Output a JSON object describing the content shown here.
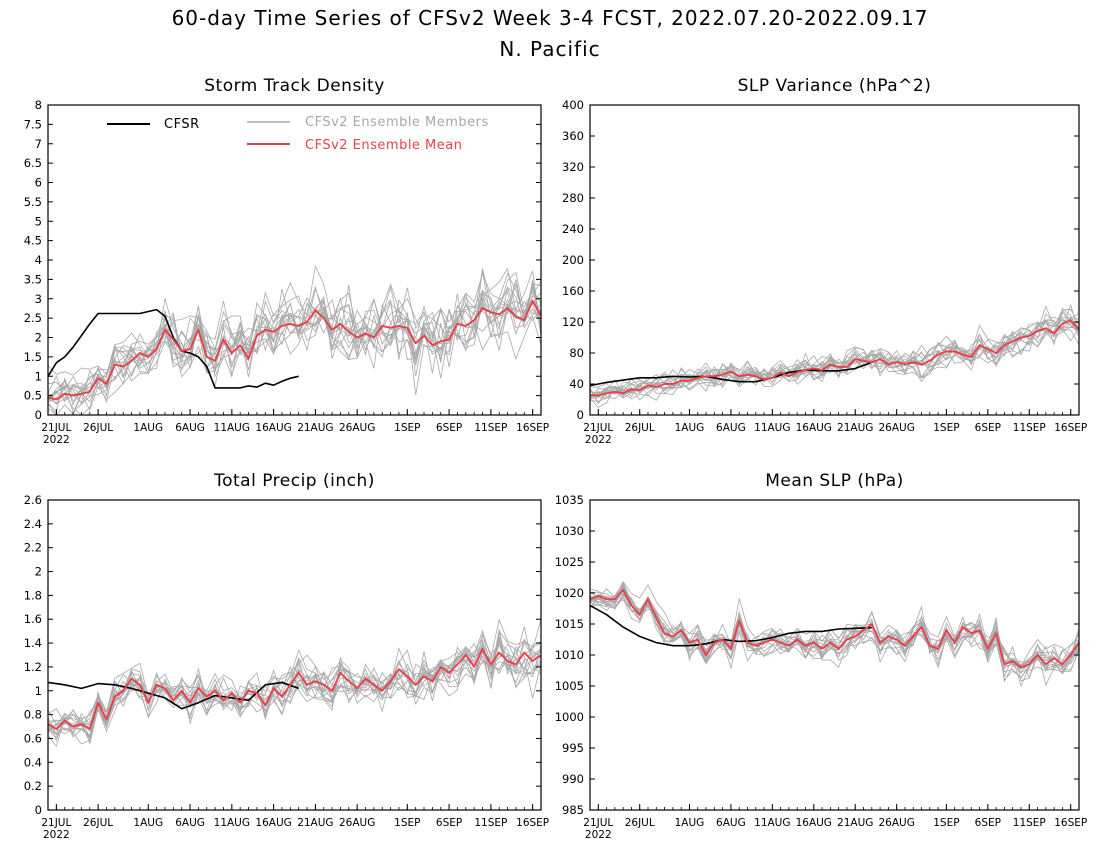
{
  "figure": {
    "title": "60-day Time Series of CFSv2 Week 3-4 FCST, 2022.07.20-2022.09.17",
    "subtitle": "N. Pacific"
  },
  "legend": {
    "cfsr": "CFSR",
    "members": "CFSv2 Ensemble Members",
    "mean": "CFSv2 Ensemble Mean"
  },
  "colors": {
    "cfsr": "#000000",
    "members": "#a8a8a8",
    "mean": "#e8414a"
  },
  "x_tick_labels": [
    "21JUL",
    "26JUL",
    "1AUG",
    "6AUG",
    "11AUG",
    "16AUG",
    "21AUG",
    "26AUG",
    "1SEP",
    "6SEP",
    "11SEP",
    "16SEP"
  ],
  "x_tick_days": [
    1,
    6,
    12,
    17,
    22,
    27,
    32,
    37,
    43,
    48,
    53,
    58
  ],
  "x_year_label": "2022",
  "chart_data": [
    {
      "type": "line",
      "title": "Storm Track Density",
      "x_unit": "day index (20JUL=0)",
      "xlim": [
        0,
        59
      ],
      "ylim": [
        0,
        8
      ],
      "yticks": [
        "0",
        "0.5",
        "1",
        "1.5",
        "2",
        "2.5",
        "3",
        "3.5",
        "4",
        "4.5",
        "5",
        "5.5",
        "6",
        "6.5",
        "7",
        "7.5",
        "8"
      ],
      "legend_placement": "top",
      "series": [
        {
          "name": "CFSR",
          "x": [
            0,
            1,
            2,
            3,
            4,
            5,
            6,
            7,
            8,
            9,
            10,
            11,
            12,
            13,
            14,
            15,
            16,
            17,
            18,
            19,
            20,
            21,
            22,
            23,
            24,
            25,
            26,
            27,
            28,
            29,
            30
          ],
          "values": [
            1.0,
            1.35,
            1.5,
            1.75,
            2.05,
            2.35,
            2.62,
            2.62,
            2.62,
            2.62,
            2.62,
            2.62,
            2.67,
            2.72,
            2.55,
            2.0,
            1.65,
            1.6,
            1.5,
            1.25,
            0.7,
            0.7,
            0.7,
            0.7,
            0.75,
            0.72,
            0.82,
            0.77,
            0.87,
            0.95,
            1.0
          ]
        },
        {
          "name": "CFSv2 Ensemble Mean",
          "x": [
            0,
            1,
            2,
            3,
            4,
            5,
            6,
            7,
            8,
            9,
            10,
            11,
            12,
            13,
            14,
            15,
            16,
            17,
            18,
            19,
            20,
            21,
            22,
            23,
            24,
            25,
            26,
            27,
            28,
            29,
            30,
            31,
            32,
            33,
            34,
            35,
            36,
            37,
            38,
            39,
            40,
            41,
            42,
            43,
            44,
            45,
            46,
            47,
            48,
            49,
            50,
            51,
            52,
            53,
            54,
            55,
            56,
            57,
            58,
            59
          ],
          "values": [
            0.45,
            0.4,
            0.55,
            0.5,
            0.55,
            0.6,
            0.95,
            0.8,
            1.3,
            1.25,
            1.4,
            1.6,
            1.5,
            1.7,
            2.2,
            1.95,
            1.65,
            1.7,
            2.2,
            1.5,
            1.4,
            1.95,
            1.6,
            1.8,
            1.45,
            2.05,
            2.2,
            2.15,
            2.3,
            2.35,
            2.3,
            2.4,
            2.7,
            2.5,
            2.2,
            2.35,
            2.15,
            2.0,
            2.1,
            2.0,
            2.3,
            2.25,
            2.3,
            2.25,
            1.85,
            2.05,
            1.8,
            1.9,
            1.95,
            2.35,
            2.3,
            2.45,
            2.75,
            2.65,
            2.6,
            2.75,
            2.55,
            2.45,
            2.95,
            2.55
          ]
        }
      ]
    },
    {
      "type": "line",
      "title": "SLP Variance (hPa^2)",
      "xlim": [
        0,
        59
      ],
      "ylim": [
        0,
        400
      ],
      "yticks": [
        "0",
        "40",
        "80",
        "120",
        "160",
        "200",
        "240",
        "280",
        "320",
        "360",
        "400"
      ],
      "series": [
        {
          "name": "CFSR",
          "x": [
            0,
            2,
            4,
            6,
            8,
            10,
            12,
            14,
            16,
            18,
            20,
            22,
            24,
            26,
            28,
            30,
            32,
            34
          ],
          "values": [
            38,
            42,
            45,
            48,
            48,
            50,
            49,
            50,
            46,
            43,
            43,
            48,
            55,
            58,
            57,
            57,
            60,
            68
          ]
        },
        {
          "name": "CFSv2 Ensemble Mean",
          "x": [
            0,
            1,
            2,
            3,
            4,
            5,
            6,
            7,
            8,
            9,
            10,
            11,
            12,
            13,
            14,
            15,
            16,
            17,
            18,
            19,
            20,
            21,
            22,
            23,
            24,
            25,
            26,
            27,
            28,
            29,
            30,
            31,
            32,
            33,
            34,
            35,
            36,
            37,
            38,
            39,
            40,
            41,
            42,
            43,
            44,
            45,
            46,
            47,
            48,
            49,
            50,
            51,
            52,
            53,
            54,
            55,
            56,
            57,
            58,
            59
          ],
          "values": [
            26,
            25,
            28,
            30,
            28,
            33,
            32,
            38,
            36,
            40,
            40,
            44,
            44,
            48,
            50,
            50,
            52,
            56,
            50,
            52,
            50,
            46,
            48,
            55,
            50,
            55,
            58,
            60,
            58,
            65,
            62,
            62,
            72,
            70,
            68,
            72,
            65,
            68,
            66,
            68,
            65,
            70,
            78,
            82,
            82,
            78,
            75,
            90,
            85,
            80,
            90,
            95,
            100,
            102,
            108,
            112,
            105,
            118,
            122,
            110
          ]
        }
      ]
    },
    {
      "type": "line",
      "title": "Total Precip (inch)",
      "xlim": [
        0,
        59
      ],
      "ylim": [
        0,
        2.6
      ],
      "yticks": [
        "0",
        "0.2",
        "0.4",
        "0.6",
        "0.8",
        "1",
        "1.2",
        "1.4",
        "1.6",
        "1.8",
        "2",
        "2.2",
        "2.4",
        "2.6"
      ],
      "series": [
        {
          "name": "CFSR",
          "x": [
            0,
            2,
            4,
            6,
            8,
            10,
            12,
            14,
            16,
            18,
            20,
            22,
            24,
            26,
            28,
            30
          ],
          "values": [
            1.07,
            1.05,
            1.02,
            1.06,
            1.05,
            1.02,
            0.98,
            0.94,
            0.85,
            0.9,
            0.96,
            0.94,
            0.92,
            1.05,
            1.07,
            1.02
          ]
        },
        {
          "name": "CFSv2 Ensemble Mean",
          "x": [
            0,
            1,
            2,
            3,
            4,
            5,
            6,
            7,
            8,
            9,
            10,
            11,
            12,
            13,
            14,
            15,
            16,
            17,
            18,
            19,
            20,
            21,
            22,
            23,
            24,
            25,
            26,
            27,
            28,
            29,
            30,
            31,
            32,
            33,
            34,
            35,
            36,
            37,
            38,
            39,
            40,
            41,
            42,
            43,
            44,
            45,
            46,
            47,
            48,
            49,
            50,
            51,
            52,
            53,
            54,
            55,
            56,
            57,
            58,
            59
          ],
          "values": [
            0.72,
            0.68,
            0.75,
            0.7,
            0.72,
            0.68,
            0.9,
            0.76,
            0.95,
            1.0,
            1.1,
            1.05,
            0.9,
            1.05,
            1.02,
            0.92,
            1.0,
            0.9,
            1.02,
            0.95,
            1.0,
            0.92,
            0.98,
            0.9,
            1.0,
            0.98,
            0.88,
            1.02,
            0.95,
            1.05,
            1.15,
            1.05,
            1.08,
            1.05,
            1.0,
            1.15,
            1.08,
            1.02,
            1.1,
            1.05,
            1.0,
            1.08,
            1.18,
            1.12,
            1.05,
            1.12,
            1.08,
            1.2,
            1.15,
            1.22,
            1.3,
            1.2,
            1.35,
            1.22,
            1.32,
            1.25,
            1.22,
            1.32,
            1.25,
            1.3
          ]
        }
      ]
    },
    {
      "type": "line",
      "title": "Mean SLP (hPa)",
      "xlim": [
        0,
        59
      ],
      "ylim": [
        985,
        1035
      ],
      "yticks": [
        "985",
        "990",
        "995",
        "1000",
        "1005",
        "1010",
        "1015",
        "1020",
        "1025",
        "1030",
        "1035"
      ],
      "series": [
        {
          "name": "CFSR",
          "x": [
            0,
            2,
            4,
            6,
            8,
            10,
            12,
            14,
            16,
            18,
            20,
            22,
            24,
            26,
            28,
            30,
            32,
            34
          ],
          "values": [
            1018,
            1016.5,
            1014.5,
            1013,
            1012,
            1011.5,
            1011.5,
            1011.8,
            1012.5,
            1012.2,
            1012.3,
            1012.8,
            1013.5,
            1013.8,
            1013.8,
            1014.2,
            1014.3,
            1014.4
          ]
        },
        {
          "name": "CFSv2 Ensemble Mean",
          "x": [
            0,
            1,
            2,
            3,
            4,
            5,
            6,
            7,
            8,
            9,
            10,
            11,
            12,
            13,
            14,
            15,
            16,
            17,
            18,
            19,
            20,
            21,
            22,
            23,
            24,
            25,
            26,
            27,
            28,
            29,
            30,
            31,
            32,
            33,
            34,
            35,
            36,
            37,
            38,
            39,
            40,
            41,
            42,
            43,
            44,
            45,
            46,
            47,
            48,
            49,
            50,
            51,
            52,
            53,
            54,
            55,
            56,
            57,
            58,
            59
          ],
          "values": [
            1019,
            1019.5,
            1019,
            1019,
            1020.5,
            1018,
            1016.5,
            1019,
            1016,
            1013.5,
            1013,
            1014,
            1012,
            1012.5,
            1010,
            1012,
            1012.5,
            1011,
            1015.5,
            1012,
            1011.5,
            1012,
            1012.5,
            1012,
            1011.5,
            1012.5,
            1011.5,
            1012,
            1011,
            1012,
            1011,
            1012.5,
            1013,
            1014,
            1015,
            1012,
            1013,
            1012.5,
            1011.5,
            1013,
            1014.5,
            1011.5,
            1011,
            1014,
            1012,
            1014.5,
            1013.5,
            1014,
            1011,
            1013.5,
            1008.5,
            1009,
            1008,
            1008.5,
            1010,
            1008.5,
            1009.5,
            1008.5,
            1010,
            1012
          ]
        }
      ]
    }
  ]
}
